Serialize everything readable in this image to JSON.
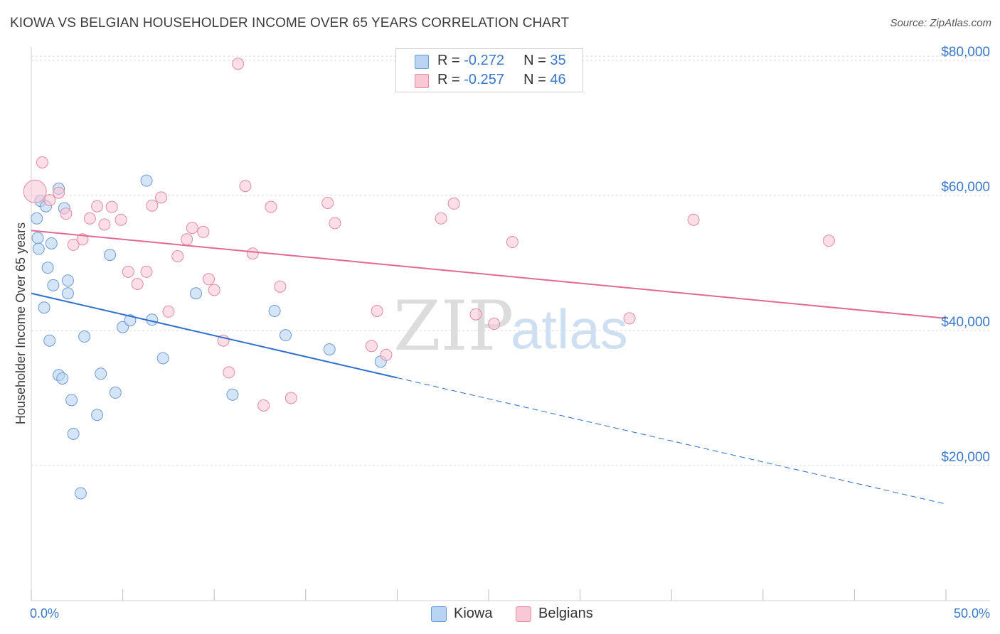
{
  "title": "KIOWA VS BELGIAN HOUSEHOLDER INCOME OVER 65 YEARS CORRELATION CHART",
  "source": "Source: ZipAtlas.com",
  "watermark": {
    "zip": "ZIP",
    "atlas": "atlas"
  },
  "legend": {
    "kiowa": {
      "r_label": "R = ",
      "r_value": "-0.272",
      "n_label": "N = ",
      "n_value": "35"
    },
    "belgians": {
      "r_label": "R = ",
      "r_value": "-0.257",
      "n_label": "N = ",
      "n_value": "46"
    }
  },
  "bottom_legend": {
    "kiowa": "Kiowa",
    "belgians": "Belgians"
  },
  "colors": {
    "kiowa_fill": "#b9d3f3",
    "kiowa_stroke": "#6d9ad6",
    "kiowa_line": "#2f6fce",
    "belgians_fill": "#f8c8d6",
    "belgians_stroke": "#e48aa5",
    "belgians_line": "#e06a92",
    "axis_text": "#3a78c9",
    "grid": "#d9d9d9"
  },
  "chart_data": {
    "type": "scatter",
    "title": "KIOWA VS BELGIAN HOUSEHOLDER INCOME OVER 65 YEARS CORRELATION CHART",
    "xlabel": "",
    "ylabel": "Householder Income Over 65 years",
    "xlim": [
      0,
      50
    ],
    "ylim": [
      0,
      82000
    ],
    "x_tick_labels": [
      "0.0%",
      "50.0%"
    ],
    "y_ticks": [
      20000,
      40000,
      60000,
      80000
    ],
    "y_tick_labels": [
      "$20,000",
      "$40,000",
      "$60,000",
      "$80,000"
    ],
    "grid": true,
    "legend_position": "top-center",
    "series": [
      {
        "name": "Kiowa",
        "r": -0.272,
        "n": 35,
        "trend": {
          "x0": 0,
          "y0": 45500,
          "x1": 20,
          "y1": 33000,
          "dashed_to_x": 50,
          "dashed_to_y": 14300
        },
        "points": [
          [
            0.3,
            56600
          ],
          [
            0.35,
            53700
          ],
          [
            0.4,
            52100
          ],
          [
            0.5,
            59200
          ],
          [
            0.7,
            43400
          ],
          [
            0.8,
            58400
          ],
          [
            0.9,
            49300
          ],
          [
            1.0,
            38500
          ],
          [
            1.1,
            52900
          ],
          [
            1.2,
            46700
          ],
          [
            1.5,
            33400
          ],
          [
            1.5,
            61000
          ],
          [
            1.7,
            32900
          ],
          [
            1.8,
            58100
          ],
          [
            2.0,
            45500
          ],
          [
            2.0,
            47400
          ],
          [
            2.2,
            29700
          ],
          [
            2.3,
            24700
          ],
          [
            2.7,
            15900
          ],
          [
            2.9,
            39100
          ],
          [
            3.6,
            27500
          ],
          [
            3.8,
            33600
          ],
          [
            4.3,
            51200
          ],
          [
            4.6,
            30800
          ],
          [
            5.0,
            40500
          ],
          [
            5.4,
            41500
          ],
          [
            6.3,
            62200
          ],
          [
            6.6,
            41600
          ],
          [
            7.2,
            35900
          ],
          [
            9.0,
            45500
          ],
          [
            11.0,
            30500
          ],
          [
            13.3,
            42900
          ],
          [
            13.9,
            39300
          ],
          [
            16.3,
            37200
          ],
          [
            19.1,
            35400
          ]
        ]
      },
      {
        "name": "Belgians",
        "r": -0.257,
        "n": 46,
        "trend": {
          "x0": 0,
          "y0": 54800,
          "x1": 50,
          "y1": 41800
        },
        "points": [
          [
            0.2,
            60600
          ],
          [
            0.6,
            64900
          ],
          [
            1.0,
            59300
          ],
          [
            1.5,
            60400
          ],
          [
            1.9,
            57300
          ],
          [
            2.3,
            52700
          ],
          [
            2.8,
            53500
          ],
          [
            3.2,
            56600
          ],
          [
            3.6,
            58400
          ],
          [
            4.0,
            55700
          ],
          [
            4.4,
            58300
          ],
          [
            4.9,
            56400
          ],
          [
            5.3,
            48700
          ],
          [
            5.8,
            46900
          ],
          [
            6.3,
            48700
          ],
          [
            6.6,
            58500
          ],
          [
            7.1,
            59700
          ],
          [
            7.5,
            42800
          ],
          [
            8.0,
            51000
          ],
          [
            8.5,
            53500
          ],
          [
            8.8,
            55200
          ],
          [
            9.4,
            54600
          ],
          [
            9.7,
            47600
          ],
          [
            10.0,
            46000
          ],
          [
            10.5,
            38500
          ],
          [
            10.8,
            33800
          ],
          [
            11.3,
            79500
          ],
          [
            11.7,
            61400
          ],
          [
            12.1,
            51400
          ],
          [
            12.7,
            28900
          ],
          [
            13.1,
            58300
          ],
          [
            13.6,
            46500
          ],
          [
            14.2,
            30000
          ],
          [
            16.2,
            58900
          ],
          [
            16.6,
            55900
          ],
          [
            18.6,
            37700
          ],
          [
            18.9,
            42900
          ],
          [
            19.4,
            36400
          ],
          [
            22.4,
            56600
          ],
          [
            23.1,
            58800
          ],
          [
            24.3,
            42400
          ],
          [
            25.3,
            41000
          ],
          [
            26.3,
            53100
          ],
          [
            32.7,
            41800
          ],
          [
            36.2,
            56400
          ],
          [
            43.6,
            53300
          ]
        ]
      }
    ]
  }
}
